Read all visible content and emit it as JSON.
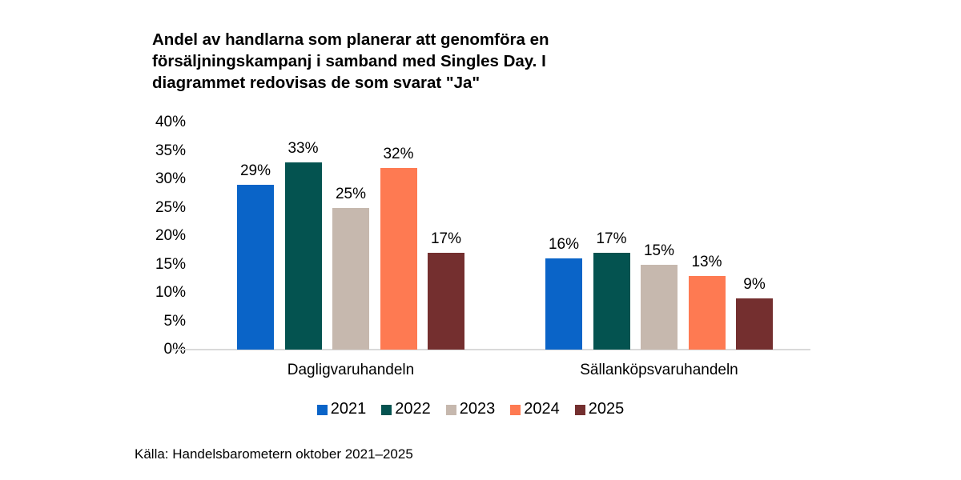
{
  "title": {
    "lines": [
      "Andel av handlarna som planerar att genomföra en",
      "försäljningskampanj i samband med Singles Day. I",
      "diagrammet redovisas de som svarat \"Ja\""
    ]
  },
  "source": "Källa: Handelsbarometern oktober 2021–2025",
  "chart_data": {
    "type": "bar",
    "categories": [
      "Dagligvaruhandeln",
      "Sällanköpsvaruhandeln"
    ],
    "series": [
      {
        "name": "2021",
        "color": "#0a64c8",
        "values": [
          29,
          16
        ]
      },
      {
        "name": "2022",
        "color": "#045350",
        "values": [
          33,
          17
        ]
      },
      {
        "name": "2023",
        "color": "#c6b8ae",
        "values": [
          25,
          15
        ]
      },
      {
        "name": "2024",
        "color": "#fe7a52",
        "values": [
          32,
          13
        ]
      },
      {
        "name": "2025",
        "color": "#742f2f",
        "values": [
          17,
          9
        ]
      }
    ],
    "value_suffix": "%",
    "ylim": [
      0,
      40
    ],
    "ytick_step": 5,
    "ytick_labels": [
      "0%",
      "5%",
      "10%",
      "15%",
      "20%",
      "25%",
      "30%",
      "35%",
      "40%"
    ],
    "legend_position": "bottom",
    "grid": false,
    "axis_line_color": "#d9d9d9",
    "text_color": "#000000",
    "background_color": "#ffffff"
  }
}
